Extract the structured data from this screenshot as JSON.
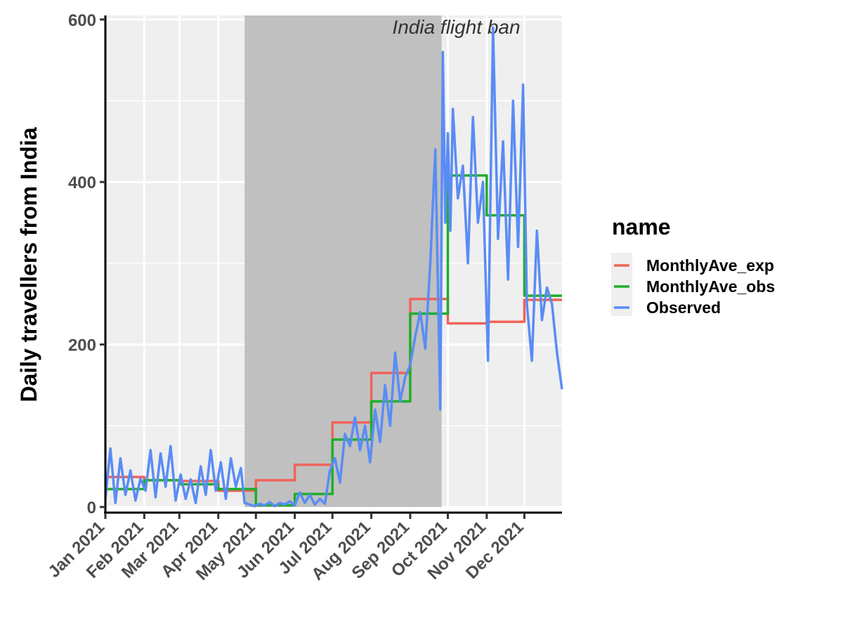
{
  "chart_data": {
    "type": "line",
    "title": "",
    "xlabel": "",
    "ylabel": "Daily travellers from India",
    "ylim": [
      0,
      605
    ],
    "y_ticks": [
      0,
      200,
      400,
      600
    ],
    "x_range": [
      "2021-01-01",
      "2021-12-31"
    ],
    "x_ticks": [
      {
        "date": "2021-01-01",
        "label": "Jan 2021"
      },
      {
        "date": "2021-02-01",
        "label": "Feb 2021"
      },
      {
        "date": "2021-03-01",
        "label": "Mar 2021"
      },
      {
        "date": "2021-04-01",
        "label": "Apr 2021"
      },
      {
        "date": "2021-05-01",
        "label": "May 2021"
      },
      {
        "date": "2021-06-01",
        "label": "Jun 2021"
      },
      {
        "date": "2021-07-01",
        "label": "Jul 2021"
      },
      {
        "date": "2021-08-01",
        "label": "Aug 2021"
      },
      {
        "date": "2021-09-01",
        "label": "Sep 2021"
      },
      {
        "date": "2021-10-01",
        "label": "Oct 2021"
      },
      {
        "date": "2021-11-01",
        "label": "Nov 2021"
      },
      {
        "date": "2021-12-01",
        "label": "Dec 2021"
      }
    ],
    "grid": true,
    "legend": {
      "title": "name",
      "position": "right"
    },
    "annotation": {
      "text": "India flight ban",
      "start": "2021-04-22",
      "end": "2021-09-26"
    },
    "colors": {
      "panel_bg": "#EFEFEF",
      "gridline": "#FFFFFF",
      "shade": "#C0C0C0",
      "MonthlyAve_exp": "#F0635A",
      "MonthlyAve_obs": "#1FAE2A",
      "Observed": "#5A8CF5"
    },
    "series": [
      {
        "name": "MonthlyAve_exp",
        "kind": "step",
        "x": [
          "2021-01-01",
          "2021-02-01",
          "2021-03-01",
          "2021-04-01",
          "2021-05-01",
          "2021-06-01",
          "2021-07-01",
          "2021-08-01",
          "2021-09-01",
          "2021-10-01",
          "2021-11-01",
          "2021-12-01",
          "2021-12-31"
        ],
        "values": [
          37,
          33,
          32,
          20,
          33,
          52,
          104,
          165,
          256,
          226,
          228,
          255,
          255
        ]
      },
      {
        "name": "MonthlyAve_obs",
        "kind": "step",
        "x": [
          "2021-01-01",
          "2021-02-01",
          "2021-03-01",
          "2021-04-01",
          "2021-05-01",
          "2021-06-01",
          "2021-07-01",
          "2021-08-01",
          "2021-09-01",
          "2021-10-01",
          "2021-11-01",
          "2021-12-01",
          "2021-12-31"
        ],
        "values": [
          22,
          33,
          28,
          22,
          2,
          16,
          83,
          130,
          238,
          408,
          359,
          260,
          260
        ]
      },
      {
        "name": "Observed",
        "kind": "line",
        "x": [
          "2021-01-01",
          "2021-01-05",
          "2021-01-09",
          "2021-01-13",
          "2021-01-17",
          "2021-01-21",
          "2021-01-25",
          "2021-01-29",
          "2021-02-02",
          "2021-02-06",
          "2021-02-10",
          "2021-02-14",
          "2021-02-18",
          "2021-02-22",
          "2021-02-26",
          "2021-03-02",
          "2021-03-06",
          "2021-03-10",
          "2021-03-14",
          "2021-03-18",
          "2021-03-22",
          "2021-03-26",
          "2021-03-30",
          "2021-04-03",
          "2021-04-07",
          "2021-04-11",
          "2021-04-15",
          "2021-04-19",
          "2021-04-22",
          "2021-04-26",
          "2021-04-30",
          "2021-05-04",
          "2021-05-08",
          "2021-05-12",
          "2021-05-16",
          "2021-05-20",
          "2021-05-24",
          "2021-05-28",
          "2021-06-01",
          "2021-06-05",
          "2021-06-09",
          "2021-06-13",
          "2021-06-17",
          "2021-06-21",
          "2021-06-25",
          "2021-06-29",
          "2021-07-03",
          "2021-07-07",
          "2021-07-11",
          "2021-07-15",
          "2021-07-19",
          "2021-07-23",
          "2021-07-27",
          "2021-07-31",
          "2021-08-04",
          "2021-08-08",
          "2021-08-12",
          "2021-08-16",
          "2021-08-20",
          "2021-08-24",
          "2021-08-28",
          "2021-09-01",
          "2021-09-05",
          "2021-09-09",
          "2021-09-13",
          "2021-09-17",
          "2021-09-21",
          "2021-09-25",
          "2021-09-27",
          "2021-09-29",
          "2021-10-01",
          "2021-10-03",
          "2021-10-05",
          "2021-10-09",
          "2021-10-13",
          "2021-10-17",
          "2021-10-21",
          "2021-10-25",
          "2021-10-29",
          "2021-11-02",
          "2021-11-06",
          "2021-11-10",
          "2021-11-14",
          "2021-11-18",
          "2021-11-22",
          "2021-11-26",
          "2021-11-30",
          "2021-12-03",
          "2021-12-07",
          "2021-12-11",
          "2021-12-15",
          "2021-12-19",
          "2021-12-23",
          "2021-12-27",
          "2021-12-31"
        ],
        "values": [
          10,
          72,
          5,
          60,
          15,
          45,
          8,
          35,
          20,
          70,
          12,
          66,
          25,
          75,
          8,
          40,
          10,
          34,
          5,
          50,
          15,
          70,
          20,
          55,
          10,
          60,
          25,
          48,
          5,
          3,
          1,
          4,
          2,
          6,
          1,
          5,
          3,
          7,
          2,
          18,
          5,
          15,
          3,
          10,
          4,
          45,
          60,
          30,
          90,
          75,
          110,
          70,
          100,
          55,
          120,
          80,
          150,
          100,
          190,
          130,
          160,
          175,
          210,
          240,
          195,
          300,
          440,
          120,
          560,
          350,
          460,
          340,
          490,
          380,
          420,
          300,
          480,
          350,
          400,
          180,
          590,
          330,
          450,
          280,
          500,
          320,
          520,
          250,
          180,
          340,
          230,
          270,
          250,
          190,
          145
        ]
      }
    ]
  }
}
